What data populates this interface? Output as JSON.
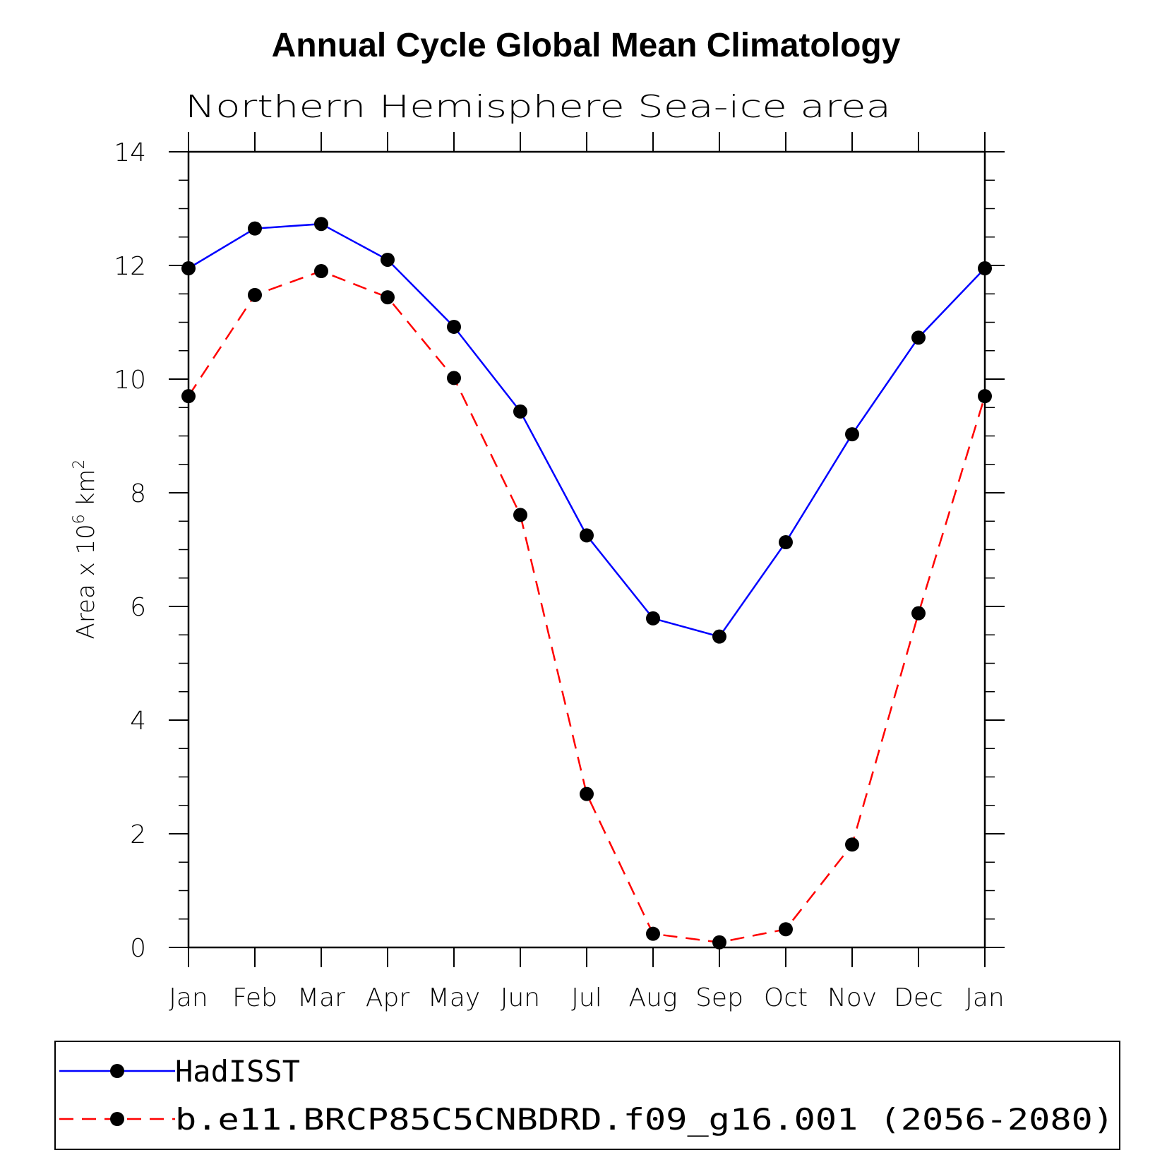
{
  "chart_data": {
    "type": "line",
    "title": "Annual Cycle Global Mean Climatology",
    "subtitle": "Northern Hemisphere Sea-ice area",
    "ylabel": {
      "base": "Area x 10",
      "exp1": "6",
      "unit": " km",
      "exp2": "2"
    },
    "xlabel": "",
    "categories": [
      "Jan",
      "Feb",
      "Mar",
      "Apr",
      "May",
      "Jun",
      "Jul",
      "Aug",
      "Sep",
      "Oct",
      "Nov",
      "Dec",
      "Jan"
    ],
    "ylim": [
      0,
      14
    ],
    "yticks": [
      0,
      2,
      4,
      6,
      8,
      10,
      12,
      14
    ],
    "yminor_step": 0.5,
    "grid": false,
    "legend_position": "bottom",
    "series": [
      {
        "name": "HadISST",
        "color": "#0000ff",
        "dash": "solid",
        "values": [
          11.95,
          12.65,
          12.73,
          12.1,
          10.92,
          9.43,
          7.25,
          5.79,
          5.47,
          7.13,
          9.03,
          10.73,
          11.95
        ]
      },
      {
        "name": "b.e11.BRCP85C5CNBDRD.f09_g16.001 (2056-2080)",
        "color": "#ff0000",
        "dash": "dashed",
        "values": [
          9.7,
          11.48,
          11.9,
          11.44,
          10.02,
          7.61,
          2.7,
          0.24,
          0.09,
          0.32,
          1.81,
          5.88,
          9.7
        ]
      }
    ]
  }
}
